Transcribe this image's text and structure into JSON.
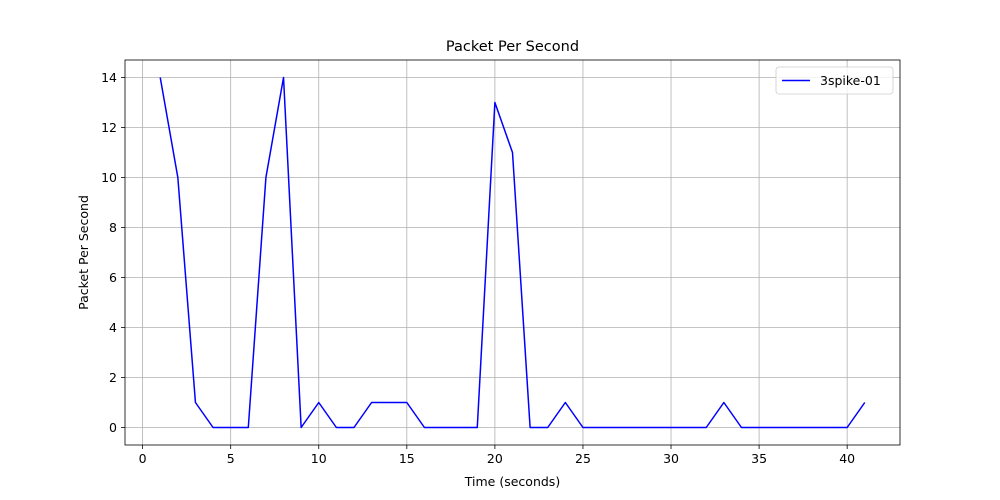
{
  "chart_data": {
    "type": "line",
    "title": "Packet Per Second",
    "xlabel": "Time (seconds)",
    "ylabel": "Packet Per Second",
    "xlim": [
      -1,
      43
    ],
    "ylim": [
      -0.7,
      14.7
    ],
    "xticks": [
      0,
      5,
      10,
      15,
      20,
      25,
      30,
      35,
      40
    ],
    "yticks": [
      0,
      2,
      4,
      6,
      8,
      10,
      12,
      14
    ],
    "grid": true,
    "legend_position": "top-right",
    "series": [
      {
        "name": "3spike-01",
        "color": "#0000ff",
        "x": [
          1,
          2,
          3,
          4,
          5,
          6,
          7,
          8,
          9,
          10,
          11,
          12,
          13,
          14,
          15,
          16,
          17,
          18,
          19,
          20,
          21,
          22,
          23,
          24,
          25,
          26,
          27,
          28,
          29,
          30,
          31,
          32,
          33,
          34,
          35,
          36,
          37,
          38,
          39,
          40,
          41
        ],
        "y": [
          14,
          10,
          1,
          0,
          0,
          0,
          10,
          14,
          0,
          1,
          0,
          0,
          1,
          1,
          1,
          0,
          0,
          0,
          0,
          13,
          11,
          0,
          0,
          1,
          0,
          0,
          0,
          0,
          0,
          0,
          0,
          0,
          1,
          0,
          0,
          0,
          0,
          0,
          0,
          0,
          1
        ]
      }
    ]
  }
}
